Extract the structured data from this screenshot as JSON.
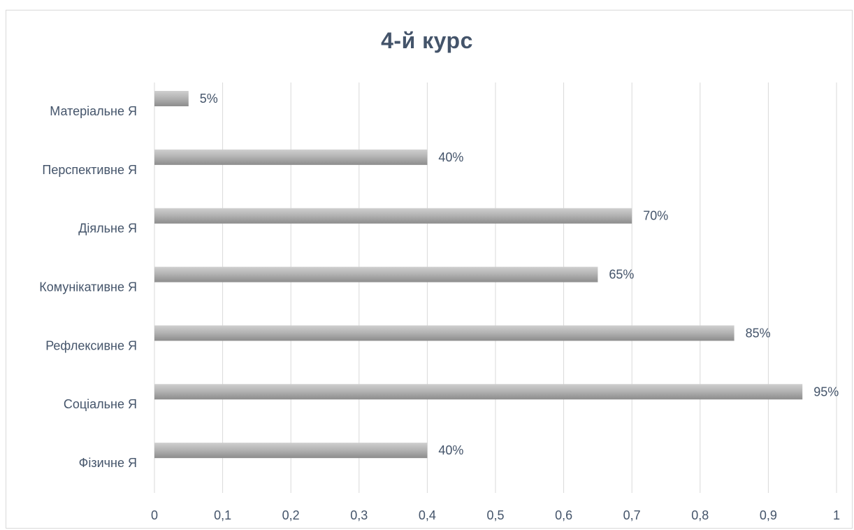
{
  "chart_data": {
    "type": "bar",
    "orientation": "horizontal",
    "title": "4-й курс",
    "xlabel": "",
    "ylabel": "",
    "categories": [
      "Матеріальне Я",
      "Перспективне Я",
      "Діяльне Я",
      "Комунікативне Я",
      "Рефлексивне Я",
      "Соціальне Я",
      "Фізичне Я"
    ],
    "values": [
      0.05,
      0.4,
      0.7,
      0.65,
      0.85,
      0.95,
      0.4
    ],
    "data_labels": [
      "5%",
      "40%",
      "70%",
      "65%",
      "85%",
      "95%",
      "40%"
    ],
    "xlim": [
      0,
      1
    ],
    "xticks": [
      0,
      0.1,
      0.2,
      0.3,
      0.4,
      0.5,
      0.6,
      0.7,
      0.8,
      0.9,
      1
    ],
    "xtick_labels": [
      "0",
      "0,1",
      "0,2",
      "0,3",
      "0,4",
      "0,5",
      "0,6",
      "0,7",
      "0,8",
      "0,9",
      "1"
    ],
    "grid": "vertical",
    "legend": "none",
    "colors": {
      "bar_light": "#cfcfcf",
      "bar_dark": "#8c8c8c",
      "grid": "#d9d9d9",
      "text": "#44546a"
    }
  }
}
